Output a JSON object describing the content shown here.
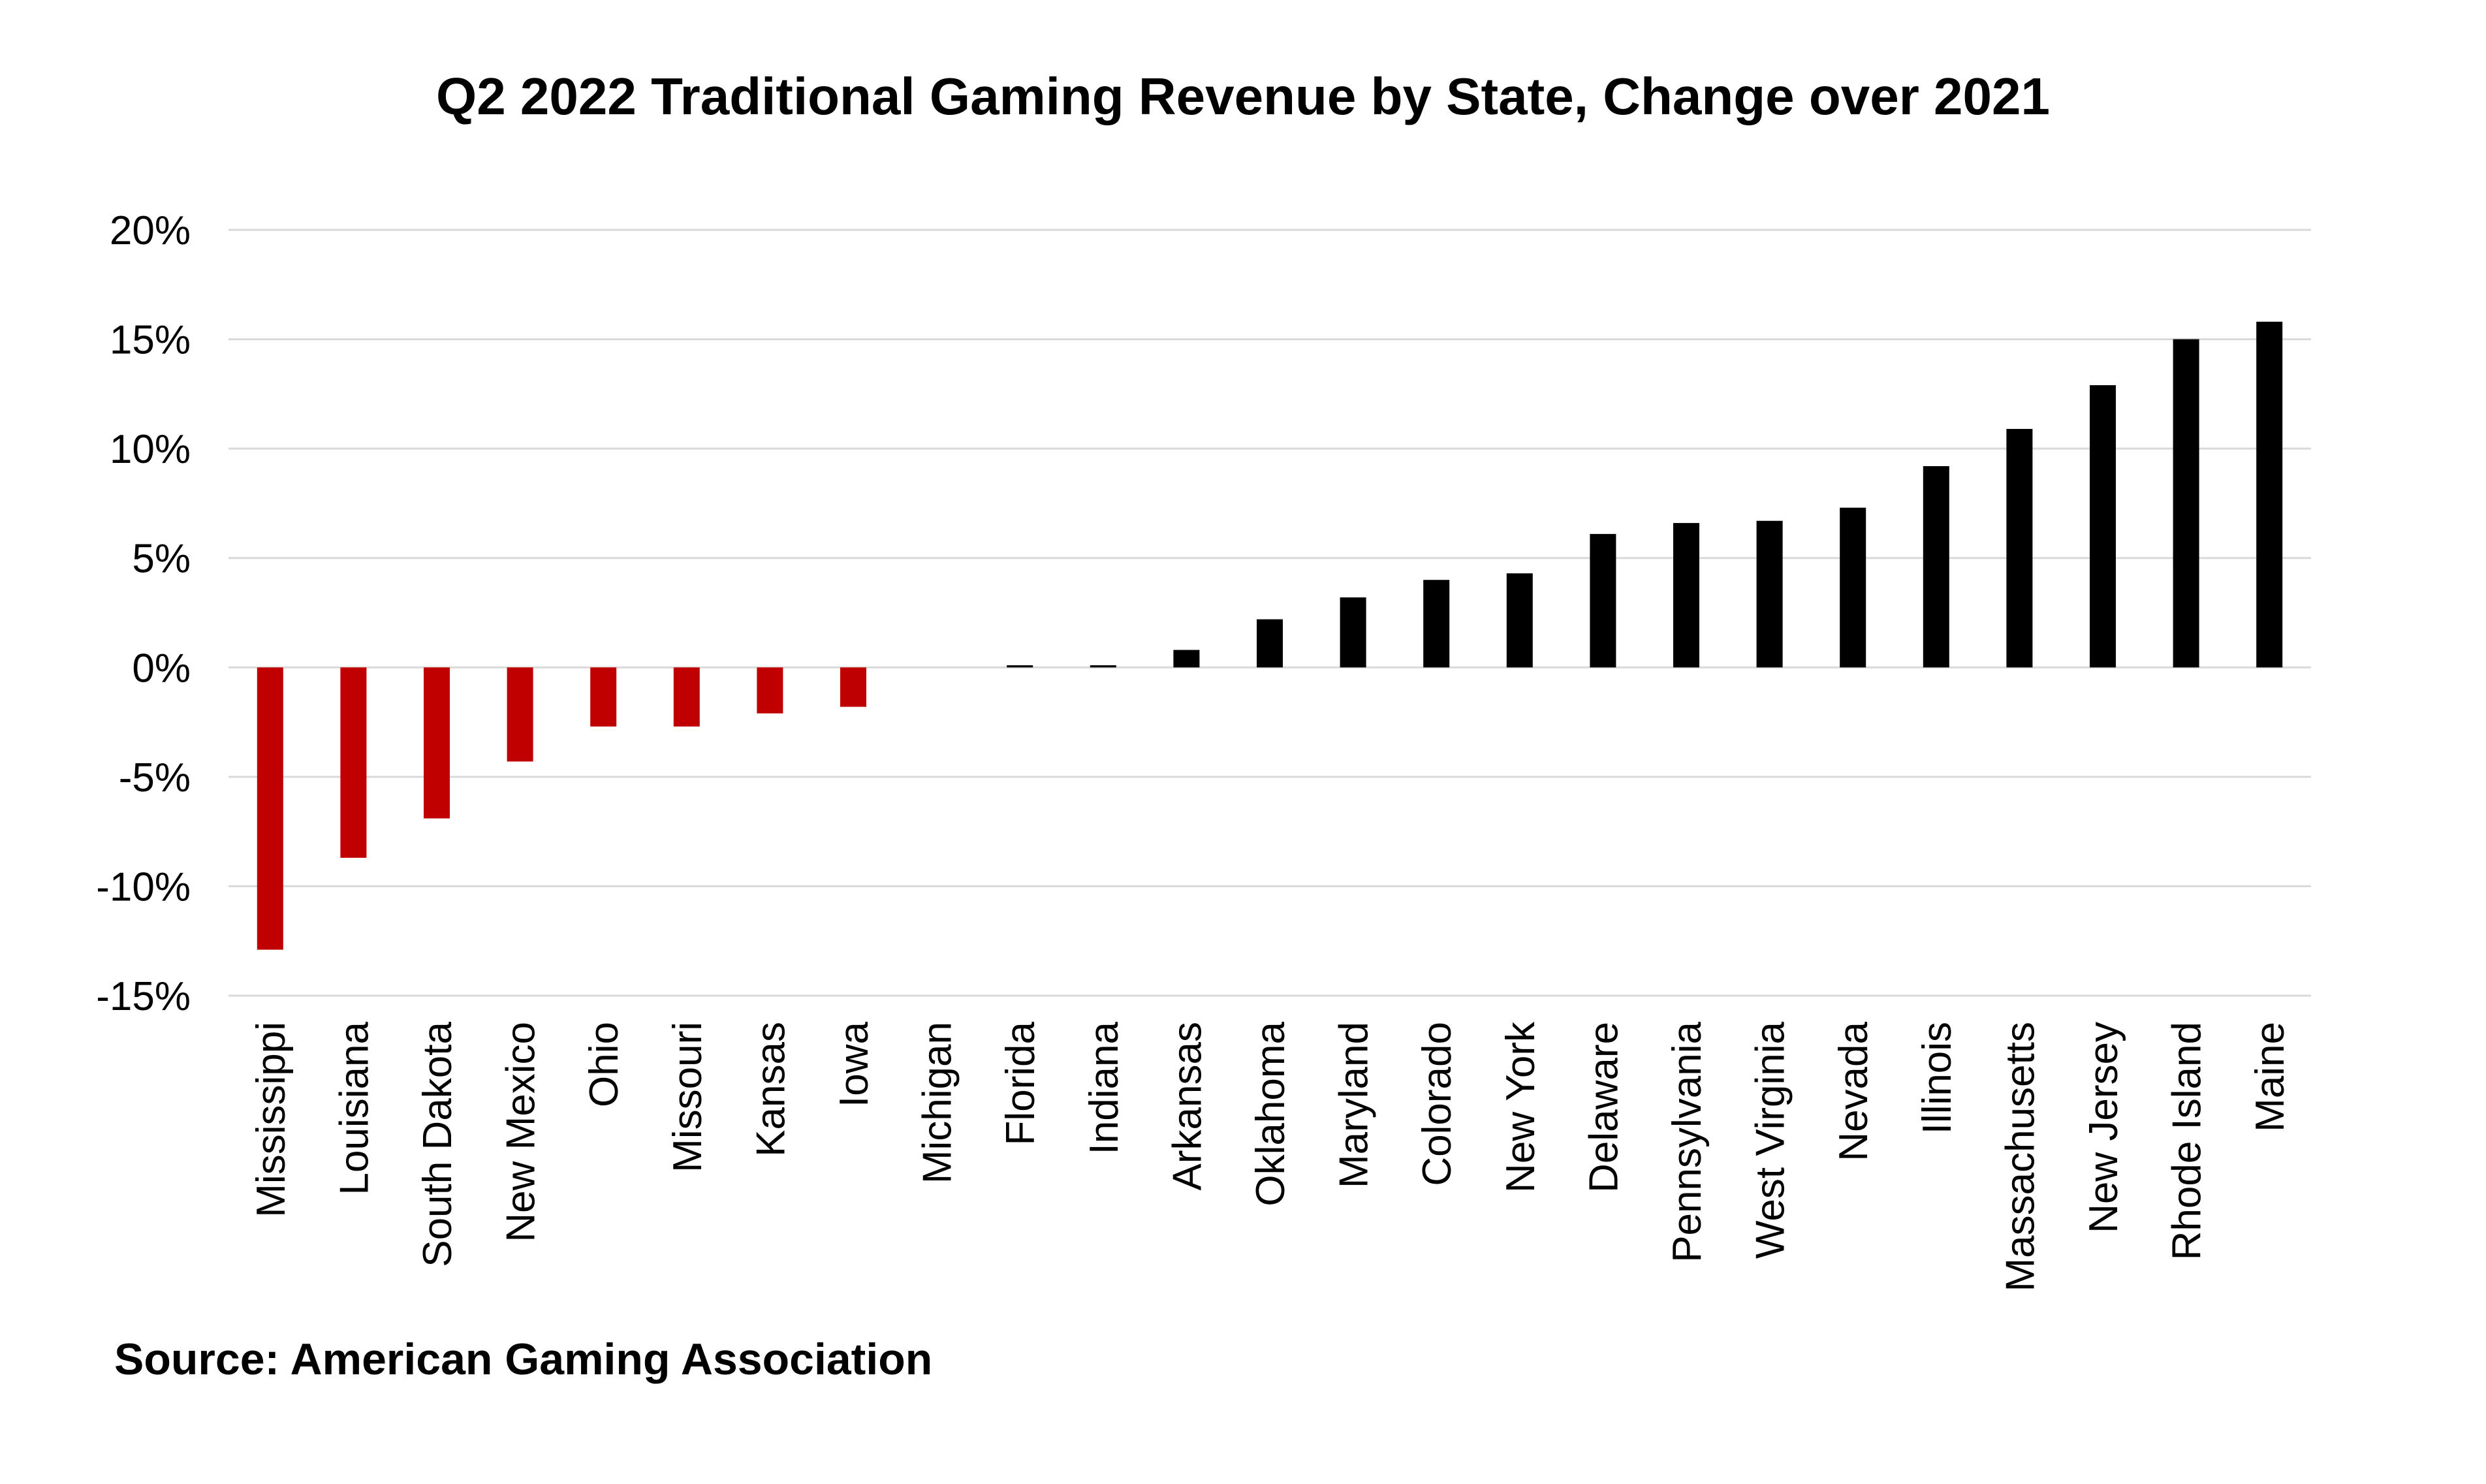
{
  "chart_data": {
    "type": "bar",
    "title": "Q2 2022 Traditional Gaming Revenue by State, Change over 2021",
    "xlabel": "",
    "ylabel": "",
    "ylim": [
      -15,
      20
    ],
    "yticks": [
      20,
      15,
      10,
      5,
      0,
      -5,
      -10,
      -15
    ],
    "ytick_labels": [
      "20%",
      "15%",
      "10%",
      "5%",
      "0%",
      "-5%",
      "-10%",
      "-15%"
    ],
    "grid": true,
    "legend": "none",
    "categories": [
      "Mississippi",
      "Louisiana",
      "South Dakota",
      "New Mexico",
      "Ohio",
      "Missouri",
      "Kansas",
      "Iowa",
      "Michigan",
      "Florida",
      "Indiana",
      "Arkansas",
      "Oklahoma",
      "Maryland",
      "Colorado",
      "New York",
      "Delaware",
      "Pennsylvania",
      "West Virginia",
      "Nevada",
      "Illinois",
      "Massachusetts",
      "New Jersey",
      "Rhode Island",
      "Maine"
    ],
    "values": [
      -12.9,
      -8.7,
      -6.9,
      -4.3,
      -2.7,
      -2.7,
      -2.1,
      -1.8,
      0.0,
      0.1,
      0.1,
      0.8,
      2.2,
      3.2,
      4.0,
      4.3,
      6.1,
      6.6,
      6.7,
      7.3,
      9.2,
      10.9,
      12.9,
      15.0,
      15.8
    ],
    "colors": {
      "negative": "#c00000",
      "positive": "#000000"
    }
  },
  "footer": {
    "source": "Source: American Gaming Association"
  }
}
